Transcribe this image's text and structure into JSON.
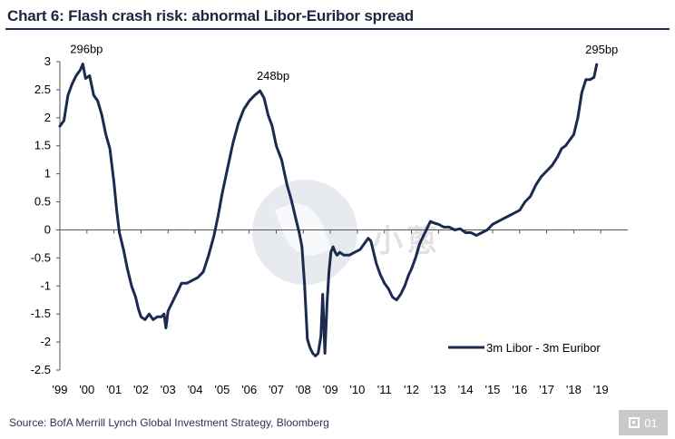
{
  "header": {
    "title": "Chart 6: Flash crash risk: abnormal Libor-Euribor spread"
  },
  "footer": {
    "source": "Source:  BofA Merrill Lynch Global Investment Strategy, Bloomberg"
  },
  "watermark": {
    "text": "小蔥",
    "badge": "01"
  },
  "colors": {
    "line": "#1b2a4e",
    "title": "#1a2740",
    "rule": "#1f2d52"
  },
  "chart_data": {
    "type": "line",
    "title": "Chart 6: Flash crash risk: abnormal Libor-Euribor spread",
    "xlabel": "",
    "ylabel": "",
    "xlim": [
      1999.0,
      2020.0
    ],
    "ylim": [
      -2.5,
      3
    ],
    "yticks": [
      -2.5,
      -2,
      -1.5,
      -1,
      -0.5,
      0,
      0.5,
      1,
      1.5,
      2,
      2.5,
      3
    ],
    "ytick_labels": [
      "-2.5",
      "-2",
      "-1.5",
      "-1",
      "-0.5",
      "0",
      "0.5",
      "1",
      "1.5",
      "2",
      "2.5",
      "3"
    ],
    "xtick_labels": [
      "'99",
      "'00",
      "'01",
      "'02",
      "'03",
      "'04",
      "'05",
      "'06",
      "'07",
      "'08",
      "'09",
      "'10",
      "'11",
      "'12",
      "'13",
      "'14",
      "'15",
      "'16",
      "'17",
      "'18",
      "'19"
    ],
    "grid": false,
    "legend": {
      "position": "bottom-right",
      "entries": [
        "3m Libor - 3m Euribor"
      ]
    },
    "annotations": [
      {
        "text": "296bp",
        "x": 1999.85,
        "y": 2.96
      },
      {
        "text": "248bp",
        "x": 2006.75,
        "y": 2.48
      },
      {
        "text": "295bp",
        "x": 2018.9,
        "y": 2.95
      }
    ],
    "series": [
      {
        "name": "3m Libor - 3m Euribor",
        "x": [
          1999.0,
          1999.15,
          1999.3,
          1999.45,
          1999.6,
          1999.75,
          1999.85,
          1999.95,
          2000.1,
          2000.25,
          2000.4,
          2000.55,
          2000.7,
          2000.85,
          2001.0,
          2001.1,
          2001.2,
          2001.35,
          2001.5,
          2001.65,
          2001.8,
          2001.9,
          2002.0,
          2002.15,
          2002.3,
          2002.45,
          2002.6,
          2002.75,
          2002.85,
          2002.92,
          2003.0,
          2003.1,
          2003.2,
          2003.35,
          2003.5,
          2003.7,
          2003.9,
          2004.1,
          2004.3,
          2004.5,
          2004.7,
          2004.85,
          2005.0,
          2005.2,
          2005.4,
          2005.6,
          2005.8,
          2006.0,
          2006.2,
          2006.4,
          2006.55,
          2006.7,
          2006.85,
          2007.0,
          2007.2,
          2007.4,
          2007.55,
          2007.7,
          2007.85,
          2007.95,
          2008.05,
          2008.15,
          2008.25,
          2008.35,
          2008.45,
          2008.55,
          2008.65,
          2008.72,
          2008.8,
          2008.88,
          2008.95,
          2009.02,
          2009.1,
          2009.18,
          2009.25,
          2009.35,
          2009.5,
          2009.7,
          2009.9,
          2010.1,
          2010.25,
          2010.4,
          2010.5,
          2010.6,
          2010.7,
          2010.85,
          2011.0,
          2011.15,
          2011.3,
          2011.45,
          2011.6,
          2011.75,
          2011.9,
          2012.0,
          2012.15,
          2012.3,
          2012.5,
          2012.7,
          2012.85,
          2013.0,
          2013.2,
          2013.4,
          2013.6,
          2013.8,
          2014.0,
          2014.2,
          2014.4,
          2014.6,
          2014.8,
          2015.0,
          2015.2,
          2015.4,
          2015.6,
          2015.8,
          2016.0,
          2016.2,
          2016.4,
          2016.6,
          2016.8,
          2017.0,
          2017.2,
          2017.4,
          2017.55,
          2017.7,
          2017.85,
          2018.0,
          2018.15,
          2018.3,
          2018.45,
          2018.6,
          2018.75,
          2018.85
        ],
        "values": [
          1.85,
          1.95,
          2.4,
          2.6,
          2.75,
          2.85,
          2.96,
          2.7,
          2.75,
          2.4,
          2.3,
          2.05,
          1.7,
          1.45,
          0.85,
          0.35,
          -0.05,
          -0.35,
          -0.7,
          -1.0,
          -1.2,
          -1.4,
          -1.55,
          -1.6,
          -1.5,
          -1.6,
          -1.55,
          -1.55,
          -1.5,
          -1.75,
          -1.45,
          -1.35,
          -1.25,
          -1.1,
          -0.95,
          -0.95,
          -0.9,
          -0.85,
          -0.75,
          -0.45,
          -0.1,
          0.25,
          0.65,
          1.1,
          1.55,
          1.9,
          2.15,
          2.3,
          2.4,
          2.48,
          2.35,
          2.05,
          1.85,
          1.5,
          1.25,
          0.8,
          0.55,
          0.25,
          -0.05,
          -0.3,
          -1.0,
          -1.95,
          -2.1,
          -2.2,
          -2.25,
          -2.2,
          -1.9,
          -1.15,
          -2.2,
          -1.3,
          -0.75,
          -0.4,
          -0.3,
          -0.4,
          -0.45,
          -0.4,
          -0.45,
          -0.45,
          -0.4,
          -0.35,
          -0.25,
          -0.15,
          -0.2,
          -0.4,
          -0.6,
          -0.8,
          -0.95,
          -1.05,
          -1.2,
          -1.25,
          -1.15,
          -1.0,
          -0.8,
          -0.7,
          -0.5,
          -0.25,
          -0.05,
          0.15,
          0.12,
          0.1,
          0.05,
          0.05,
          0.0,
          0.02,
          -0.05,
          -0.05,
          -0.1,
          -0.05,
          0.0,
          0.1,
          0.15,
          0.2,
          0.25,
          0.3,
          0.35,
          0.5,
          0.6,
          0.8,
          0.95,
          1.05,
          1.15,
          1.3,
          1.45,
          1.5,
          1.6,
          1.7,
          2.0,
          2.45,
          2.68,
          2.68,
          2.72,
          2.95
        ]
      }
    ]
  }
}
